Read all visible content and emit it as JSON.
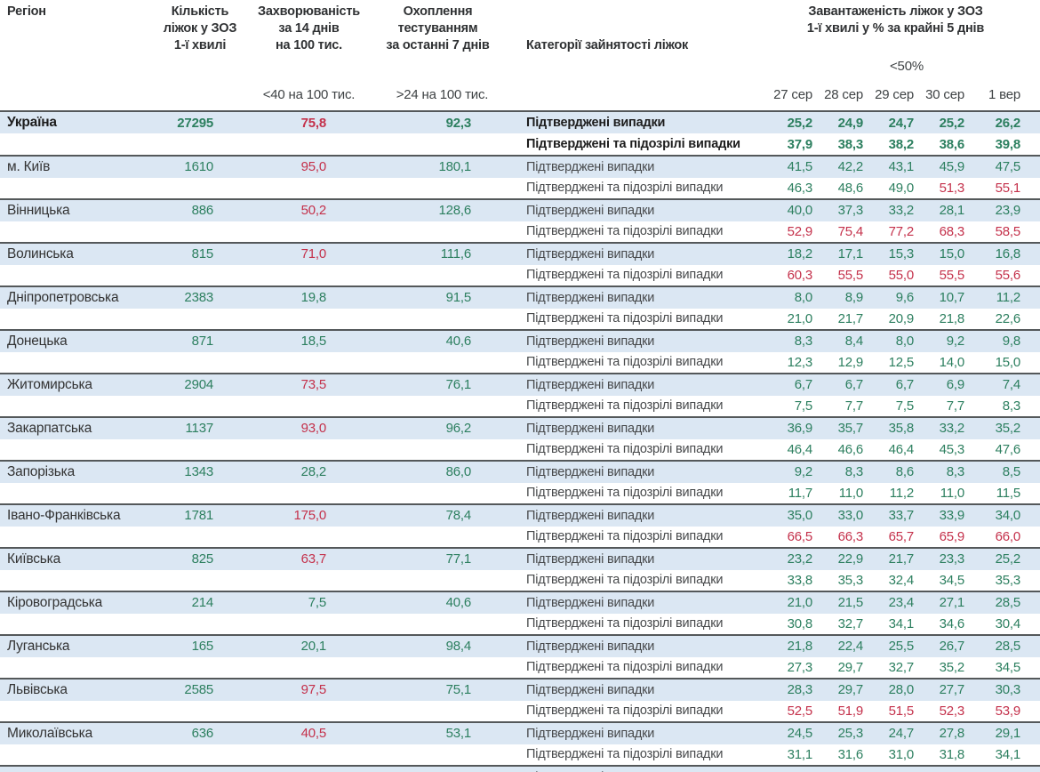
{
  "colors": {
    "green": "#2c7f5f",
    "red": "#c4314b",
    "row_band": "#dbe7f3",
    "border_dark": "#54585a"
  },
  "header": {
    "region": "Регіон",
    "beds": "Кількість\nліжок у ЗОЗ\n1-ї хвилі",
    "incidence": "Захворюваність\nза 14 днів\nна 100 тис.",
    "testing": "Охоплення\nтестуванням\nза останні 7 днів",
    "categories": "Категорії зайнятості ліжок",
    "load": "Завантаженість ліжок у ЗОЗ\n1-ї хвилі у % за крайні 5 днів",
    "under50": "<50%",
    "sub_incidence": "<40 на 100 тис.",
    "sub_testing": ">24 на 100 тис.",
    "dates": [
      "27 сер",
      "28 сер",
      "29 сер",
      "30 сер",
      "1 вер"
    ]
  },
  "row_labels": {
    "confirmed": "Підтверджені випадки",
    "confirmed_suspected": "Підтверджені та підозрілі випадки"
  },
  "regions": [
    {
      "name": "Україна",
      "bold": true,
      "beds": "27295",
      "inc": "75,8",
      "inc_c": "r",
      "test": "92,3",
      "rows": [
        {
          "vals": [
            "25,2",
            "24,9",
            "24,7",
            "25,2",
            "26,2"
          ],
          "cols": "ggggg"
        },
        {
          "vals": [
            "37,9",
            "38,3",
            "38,2",
            "38,6",
            "39,8"
          ],
          "cols": "ggggg"
        }
      ]
    },
    {
      "name": "м. Київ",
      "beds": "1610",
      "inc": "95,0",
      "inc_c": "r",
      "test": "180,1",
      "rows": [
        {
          "vals": [
            "41,5",
            "42,2",
            "43,1",
            "45,9",
            "47,5"
          ],
          "cols": "ggggg"
        },
        {
          "vals": [
            "46,3",
            "48,6",
            "49,0",
            "51,3",
            "55,1"
          ],
          "cols": "gggrr"
        }
      ]
    },
    {
      "name": "Вінницька",
      "beds": "886",
      "inc": "50,2",
      "inc_c": "r",
      "test": "128,6",
      "rows": [
        {
          "vals": [
            "40,0",
            "37,3",
            "33,2",
            "28,1",
            "23,9"
          ],
          "cols": "ggggg"
        },
        {
          "vals": [
            "52,9",
            "75,4",
            "77,2",
            "68,3",
            "58,5"
          ],
          "cols": "rrrrr"
        }
      ]
    },
    {
      "name": "Волинська",
      "beds": "815",
      "inc": "71,0",
      "inc_c": "r",
      "test": "111,6",
      "rows": [
        {
          "vals": [
            "18,2",
            "17,1",
            "15,3",
            "15,0",
            "16,8"
          ],
          "cols": "ggggg"
        },
        {
          "vals": [
            "60,3",
            "55,5",
            "55,0",
            "55,5",
            "55,6"
          ],
          "cols": "rrrrr"
        }
      ]
    },
    {
      "name": "Дніпропетровська",
      "beds": "2383",
      "inc": "19,8",
      "inc_c": "g",
      "test": "91,5",
      "rows": [
        {
          "vals": [
            "8,0",
            "8,9",
            "9,6",
            "10,7",
            "11,2"
          ],
          "cols": "ggggg"
        },
        {
          "vals": [
            "21,0",
            "21,7",
            "20,9",
            "21,8",
            "22,6"
          ],
          "cols": "ggggg"
        }
      ]
    },
    {
      "name": "Донецька",
      "beds": "871",
      "inc": "18,5",
      "inc_c": "g",
      "test": "40,6",
      "rows": [
        {
          "vals": [
            "8,3",
            "8,4",
            "8,0",
            "9,2",
            "9,8"
          ],
          "cols": "ggggg"
        },
        {
          "vals": [
            "12,3",
            "12,9",
            "12,5",
            "14,0",
            "15,0"
          ],
          "cols": "ggggg"
        }
      ]
    },
    {
      "name": "Житомирська",
      "beds": "2904",
      "inc": "73,5",
      "inc_c": "r",
      "test": "76,1",
      "rows": [
        {
          "vals": [
            "6,7",
            "6,7",
            "6,7",
            "6,9",
            "7,4"
          ],
          "cols": "ggggg"
        },
        {
          "vals": [
            "7,5",
            "7,7",
            "7,5",
            "7,7",
            "8,3"
          ],
          "cols": "ggggg"
        }
      ]
    },
    {
      "name": "Закарпатська",
      "beds": "1137",
      "inc": "93,0",
      "inc_c": "r",
      "test": "96,2",
      "rows": [
        {
          "vals": [
            "36,9",
            "35,7",
            "35,8",
            "33,2",
            "35,2"
          ],
          "cols": "ggggg"
        },
        {
          "vals": [
            "46,4",
            "46,6",
            "46,4",
            "45,3",
            "47,6"
          ],
          "cols": "ggggg"
        }
      ]
    },
    {
      "name": "Запорізька",
      "beds": "1343",
      "inc": "28,2",
      "inc_c": "g",
      "test": "86,0",
      "rows": [
        {
          "vals": [
            "9,2",
            "8,3",
            "8,6",
            "8,3",
            "8,5"
          ],
          "cols": "ggggg"
        },
        {
          "vals": [
            "11,7",
            "11,0",
            "11,2",
            "11,0",
            "11,5"
          ],
          "cols": "ggggg"
        }
      ]
    },
    {
      "name": "Івано-Франківська",
      "beds": "1781",
      "inc": "175,0",
      "inc_c": "r",
      "test": "78,4",
      "rows": [
        {
          "vals": [
            "35,0",
            "33,0",
            "33,7",
            "33,9",
            "34,0"
          ],
          "cols": "ggggg"
        },
        {
          "vals": [
            "66,5",
            "66,3",
            "65,7",
            "65,9",
            "66,0"
          ],
          "cols": "rrrrr"
        }
      ]
    },
    {
      "name": "Київська",
      "beds": "825",
      "inc": "63,7",
      "inc_c": "r",
      "test": "77,1",
      "rows": [
        {
          "vals": [
            "23,2",
            "22,9",
            "21,7",
            "23,3",
            "25,2"
          ],
          "cols": "ggggg"
        },
        {
          "vals": [
            "33,8",
            "35,3",
            "32,4",
            "34,5",
            "35,3"
          ],
          "cols": "ggggg"
        }
      ]
    },
    {
      "name": "Кіровоградська",
      "beds": "214",
      "inc": "7,5",
      "inc_c": "g",
      "test": "40,6",
      "rows": [
        {
          "vals": [
            "21,0",
            "21,5",
            "23,4",
            "27,1",
            "28,5"
          ],
          "cols": "ggggg"
        },
        {
          "vals": [
            "30,8",
            "32,7",
            "34,1",
            "34,6",
            "30,4"
          ],
          "cols": "ggggg"
        }
      ]
    },
    {
      "name": "Луганська",
      "beds": "165",
      "inc": "20,1",
      "inc_c": "g",
      "test": "98,4",
      "rows": [
        {
          "vals": [
            "21,8",
            "22,4",
            "25,5",
            "26,7",
            "28,5"
          ],
          "cols": "ggggg"
        },
        {
          "vals": [
            "27,3",
            "29,7",
            "32,7",
            "35,2",
            "34,5"
          ],
          "cols": "ggggg"
        }
      ]
    },
    {
      "name": "Львівська",
      "beds": "2585",
      "inc": "97,5",
      "inc_c": "r",
      "test": "75,1",
      "rows": [
        {
          "vals": [
            "28,3",
            "29,7",
            "28,0",
            "27,7",
            "30,3"
          ],
          "cols": "ggggg"
        },
        {
          "vals": [
            "52,5",
            "51,9",
            "51,5",
            "52,3",
            "53,9"
          ],
          "cols": "rrrrr"
        }
      ]
    },
    {
      "name": "Миколаївська",
      "beds": "636",
      "inc": "40,5",
      "inc_c": "r",
      "test": "53,1",
      "rows": [
        {
          "vals": [
            "24,5",
            "25,3",
            "24,7",
            "27,8",
            "29,1"
          ],
          "cols": "ggggg"
        },
        {
          "vals": [
            "31,1",
            "31,6",
            "31,0",
            "31,8",
            "34,1"
          ],
          "cols": "ggggg"
        }
      ]
    }
  ]
}
